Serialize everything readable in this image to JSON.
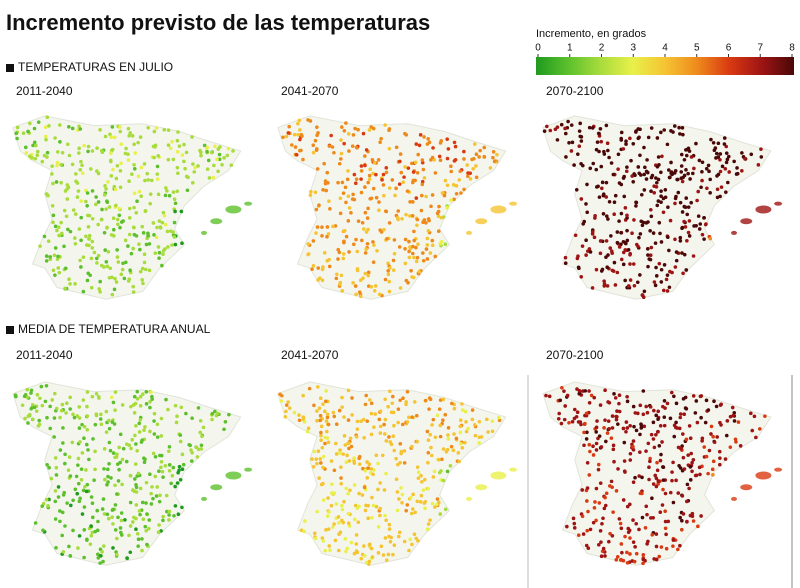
{
  "title": "Incremento previsto de las temperaturas",
  "legend": {
    "title": "Incremento, en grados",
    "ticks": [
      0,
      1,
      2,
      3,
      4,
      5,
      6,
      7,
      8
    ],
    "colors": [
      "#1f9a1f",
      "#5cc02c",
      "#a8dc3c",
      "#e8f04a",
      "#f5c433",
      "#ee8a1c",
      "#d93a12",
      "#9e1414",
      "#4a0808"
    ]
  },
  "sections": [
    {
      "heading": "TEMPERATURAS EN JULIO",
      "panels": [
        "2011-2040",
        "2041-2070",
        "2070-2100"
      ]
    },
    {
      "heading": "MEDIA DE TEMPERATURA ANUAL",
      "panels": [
        "2011-2040",
        "2041-2070",
        "2070-2100"
      ]
    }
  ]
}
